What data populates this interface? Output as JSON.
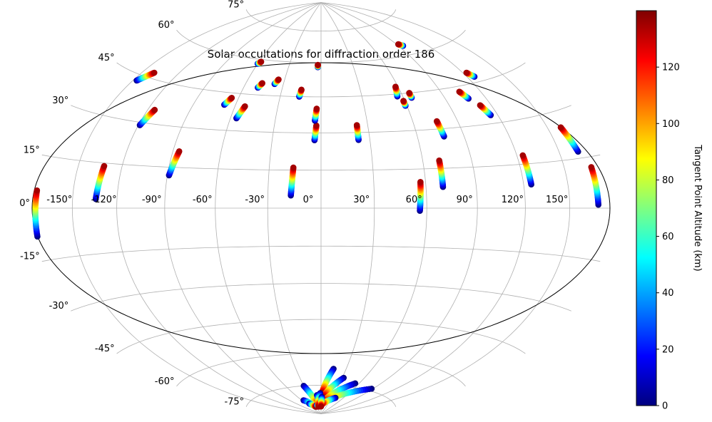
{
  "chart_data": {
    "type": "scatter",
    "projection": "hammer-aitoff",
    "title": "Solar occultations for diffraction order 186",
    "colorbar": {
      "label": "Tangent Point Altitude (km)",
      "ticks": [
        0,
        20,
        40,
        60,
        80,
        100,
        120
      ],
      "range": [
        0,
        140
      ],
      "colormap": "jet"
    },
    "lon_ticks": [
      "-150°",
      "-120°",
      "-90°",
      "-60°",
      "-30°",
      "0°",
      "30°",
      "60°",
      "90°",
      "120°",
      "150°"
    ],
    "lat_ticks": [
      "75°",
      "60°",
      "45°",
      "30°",
      "15°",
      "0°",
      "-15°",
      "-30°",
      "-45°",
      "-60°",
      "-75°"
    ],
    "grid": true,
    "tracks": [
      {
        "lon_start": -178,
        "lat_start": -8,
        "lon_end": -177,
        "lat_end": 5
      },
      {
        "lon_start": -147,
        "lat_start": 43,
        "lon_end": -140,
        "lat_end": 47
      },
      {
        "lon_start": -134,
        "lat_start": 3,
        "lon_end": -132,
        "lat_end": 14
      },
      {
        "lon_start": -119,
        "lat_start": 29,
        "lon_end": -115,
        "lat_end": 35
      },
      {
        "lon_start": -89,
        "lat_start": 12,
        "lon_end": -86,
        "lat_end": 21
      },
      {
        "lon_start": -68,
        "lat_start": 40,
        "lon_end": -65,
        "lat_end": 43
      },
      {
        "lon_start": -60,
        "lat_start": 58,
        "lon_end": -58,
        "lat_end": 59
      },
      {
        "lon_start": -56,
        "lat_start": 35,
        "lon_end": -53,
        "lat_end": 40
      },
      {
        "lon_start": -49,
        "lat_start": 48,
        "lon_end": -47,
        "lat_end": 50
      },
      {
        "lon_start": -37,
        "lat_start": 50,
        "lon_end": -35,
        "lat_end": 52
      },
      {
        "lon_start": -17,
        "lat_start": 5,
        "lon_end": -16,
        "lat_end": 16
      },
      {
        "lon_start": -16,
        "lat_start": 45,
        "lon_end": -15,
        "lat_end": 48
      },
      {
        "lon_start": -4,
        "lat_start": 27,
        "lon_end": -3,
        "lat_end": 33
      },
      {
        "lon_start": -4,
        "lat_start": 35,
        "lon_end": -3,
        "lat_end": 40
      },
      {
        "lon_start": -3,
        "lat_start": 58,
        "lon_end": -3,
        "lat_end": 59
      },
      {
        "lon_start": 23,
        "lat_start": 27,
        "lon_end": 23,
        "lat_end": 33
      },
      {
        "lon_start": 56,
        "lat_start": -1,
        "lon_end": 57,
        "lat_end": 10
      },
      {
        "lon_start": 56,
        "lat_start": 44,
        "lon_end": 58,
        "lat_end": 48
      },
      {
        "lon_start": 59,
        "lat_start": 40,
        "lon_end": 59,
        "lat_end": 42
      },
      {
        "lon_start": 66,
        "lat_start": 43,
        "lon_end": 66,
        "lat_end": 45
      },
      {
        "lon_start": 70,
        "lat_start": 8,
        "lon_end": 70,
        "lat_end": 18
      },
      {
        "lon_start": 77,
        "lat_start": 27,
        "lon_end": 76,
        "lat_end": 33
      },
      {
        "lon_start": 95,
        "lat_start": 64,
        "lon_end": 92,
        "lat_end": 65
      },
      {
        "lon_start": 107,
        "lat_start": 40,
        "lon_end": 104,
        "lat_end": 43
      },
      {
        "lon_start": 115,
        "lat_start": 33,
        "lon_end": 112,
        "lat_end": 37
      },
      {
        "lon_start": 126,
        "lat_start": 47,
        "lon_end": 123,
        "lat_end": 49
      },
      {
        "lon_start": 125,
        "lat_start": 8,
        "lon_end": 124,
        "lat_end": 18
      },
      {
        "lon_start": 164,
        "lat_start": 17,
        "lon_end": 160,
        "lat_end": 25
      },
      {
        "lon_start": 171,
        "lat_start": 1,
        "lon_end": 170,
        "lat_end": 12
      },
      {
        "lon_start": 15,
        "lat_start": -67,
        "lon_end": 2,
        "lat_end": -79
      },
      {
        "lon_start": 32,
        "lat_start": -71,
        "lon_end": 5,
        "lat_end": -81
      },
      {
        "lon_start": 54,
        "lat_start": -73,
        "lon_end": 5,
        "lat_end": -84
      },
      {
        "lon_start": 88,
        "lat_start": -74,
        "lon_end": 10,
        "lat_end": -84
      },
      {
        "lon_start": 40,
        "lat_start": -81,
        "lon_end": 3,
        "lat_end": -85
      },
      {
        "lon_start": -30,
        "lat_start": -75,
        "lon_end": -15,
        "lat_end": -86
      },
      {
        "lon_start": -10,
        "lat_start": -80,
        "lon_end": -4,
        "lat_end": -86
      },
      {
        "lon_start": -55,
        "lat_start": -82,
        "lon_end": -25,
        "lat_end": -86
      },
      {
        "lon_start": -48,
        "lat_start": -84,
        "lon_end": -30,
        "lat_end": -86
      },
      {
        "lon_start": -20,
        "lat_start": -85,
        "lon_end": -12,
        "lat_end": -86
      },
      {
        "lon_start": -2,
        "lat_start": -79,
        "lon_end": -15,
        "lat_end": -86
      },
      {
        "lon_start": 2,
        "lat_start": -81,
        "lon_end": 0,
        "lat_end": -86
      }
    ]
  }
}
